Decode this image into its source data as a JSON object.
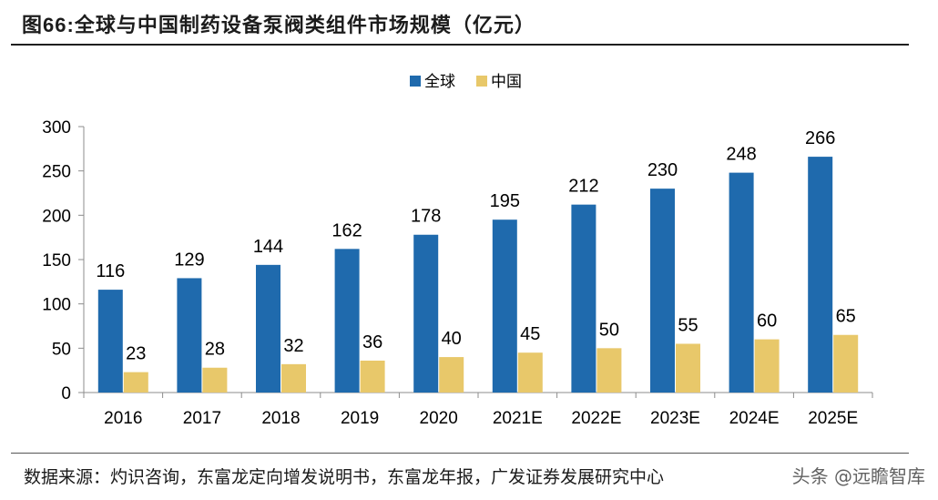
{
  "header": {
    "figure_label": "图66:",
    "title": "全球与中国制药设备泵阀类组件市场规模（亿元）"
  },
  "source_note": "数据来源：灼识咨询，东富龙定向增发说明书，东富龙年报，广发证券发展研究中心",
  "watermark": "头条 @远瞻智库",
  "colors": {
    "global": "#1f6aad",
    "china": "#e8c86a",
    "axis": "#8c8c8c"
  },
  "chart_data": {
    "type": "bar",
    "categories": [
      "2016",
      "2017",
      "2018",
      "2019",
      "2020",
      "2021E",
      "2022E",
      "2023E",
      "2024E",
      "2025E"
    ],
    "series": [
      {
        "name": "全球",
        "values": [
          116,
          129,
          144,
          162,
          178,
          195,
          212,
          230,
          248,
          266
        ]
      },
      {
        "name": "中国",
        "values": [
          23,
          28,
          32,
          36,
          40,
          45,
          50,
          55,
          60,
          65
        ]
      }
    ],
    "yticks": [
      0,
      50,
      100,
      150,
      200,
      250,
      300
    ],
    "ylim": [
      0,
      300
    ],
    "legend_position": "top-center",
    "grid": false
  }
}
